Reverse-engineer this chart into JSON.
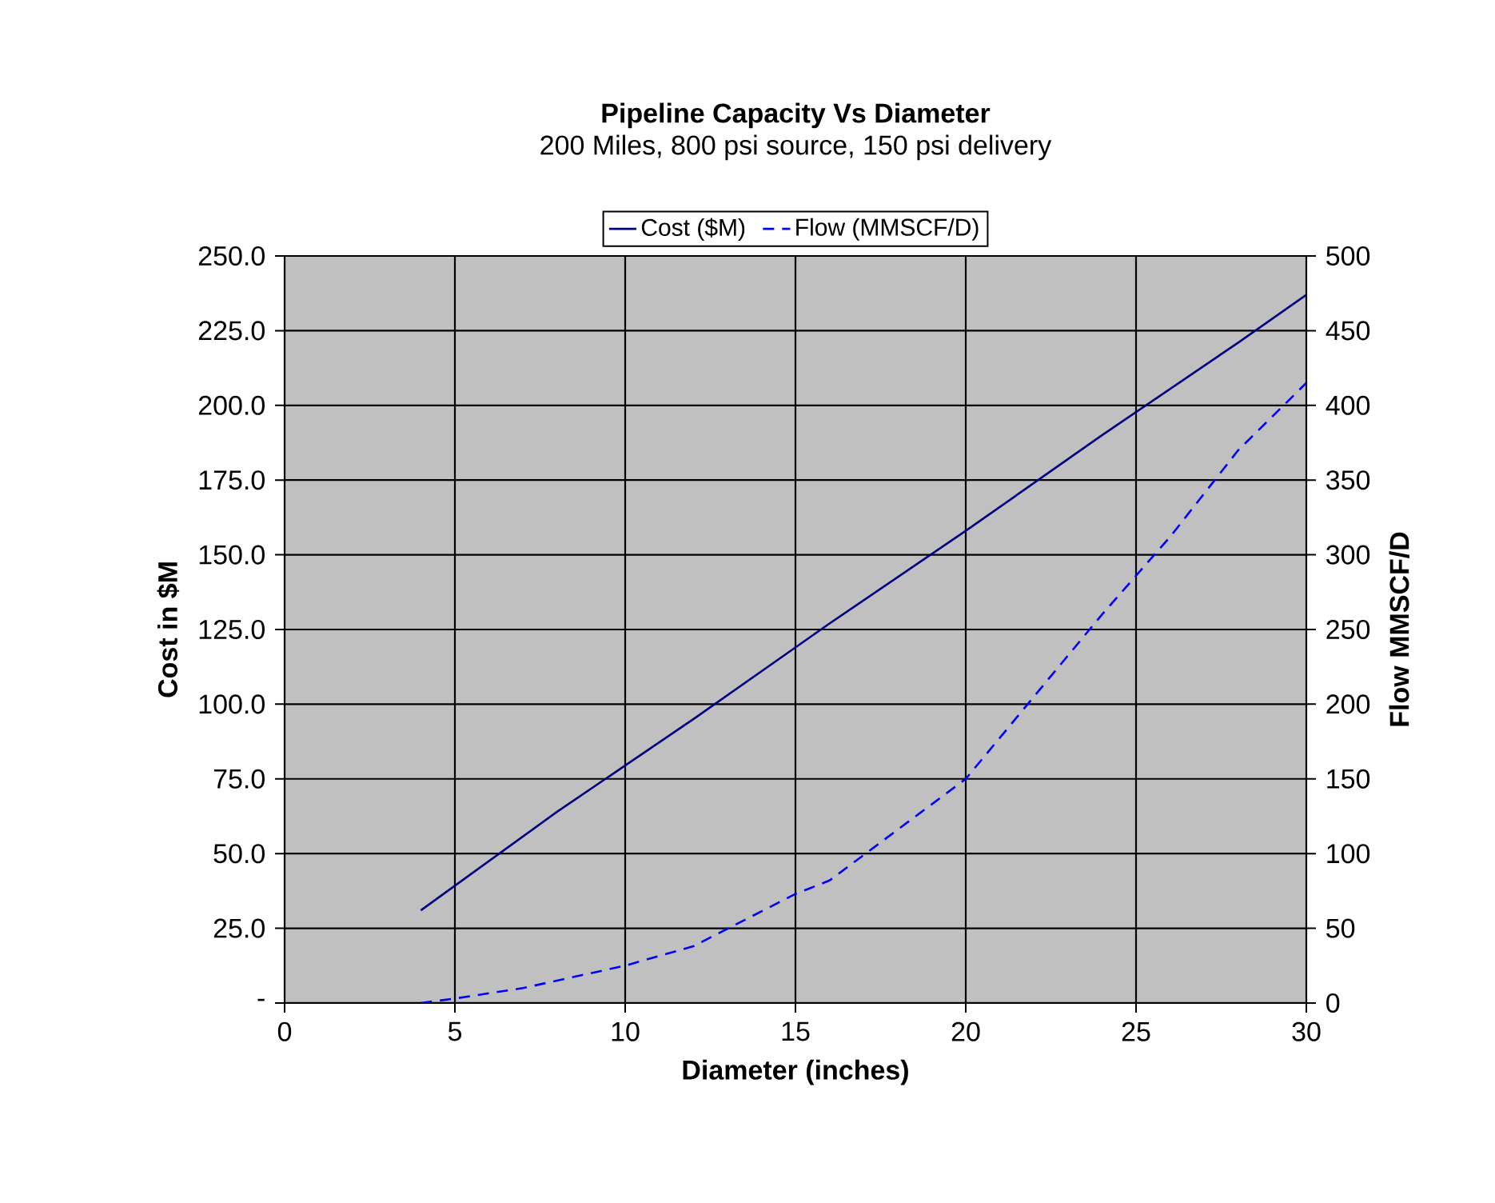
{
  "chart_data": {
    "type": "line",
    "title": "Pipeline Capacity Vs Diameter",
    "subtitle": "200 Miles, 800 psi source, 150 psi delivery",
    "xlabel": "Diameter (inches)",
    "ylabel": "Cost in $M",
    "y2label": "Flow MMSCF/D",
    "xlim": [
      0,
      30
    ],
    "xticks": [
      0,
      5,
      10,
      15,
      20,
      25,
      30
    ],
    "ylim": [
      0,
      250
    ],
    "yticks": [
      {
        "value": 0,
        "label": "-"
      },
      {
        "value": 25,
        "label": "25.0"
      },
      {
        "value": 50,
        "label": "50.0"
      },
      {
        "value": 75,
        "label": "75.0"
      },
      {
        "value": 100,
        "label": "100.0"
      },
      {
        "value": 125,
        "label": "125.0"
      },
      {
        "value": 150,
        "label": "150.0"
      },
      {
        "value": 175,
        "label": "175.0"
      },
      {
        "value": 200,
        "label": "200.0"
      },
      {
        "value": 225,
        "label": "225.0"
      },
      {
        "value": 250,
        "label": "250.0"
      }
    ],
    "y2lim": [
      0,
      500
    ],
    "y2ticks": [
      0,
      50,
      100,
      150,
      200,
      250,
      300,
      350,
      400,
      450,
      500
    ],
    "grid": true,
    "legend": "top",
    "marker": "none",
    "series": [
      {
        "name": "Cost ($M)",
        "color": "#000080",
        "line_style": "solid",
        "x": [
          4,
          8,
          12,
          16,
          20,
          24,
          28,
          30
        ],
        "values": [
          31,
          64,
          95,
          127,
          158,
          190,
          221,
          237
        ]
      },
      {
        "name": "Flow (MMSCF/D)",
        "color": "#0000ff",
        "line_style": "dashed",
        "axis": "y2",
        "x": [
          4,
          5,
          7,
          10,
          12,
          15,
          16,
          20,
          22,
          24,
          26,
          28,
          30
        ],
        "values": [
          0,
          3,
          10,
          25,
          38,
          73,
          82,
          150,
          205,
          260,
          312,
          370,
          415
        ]
      }
    ]
  }
}
